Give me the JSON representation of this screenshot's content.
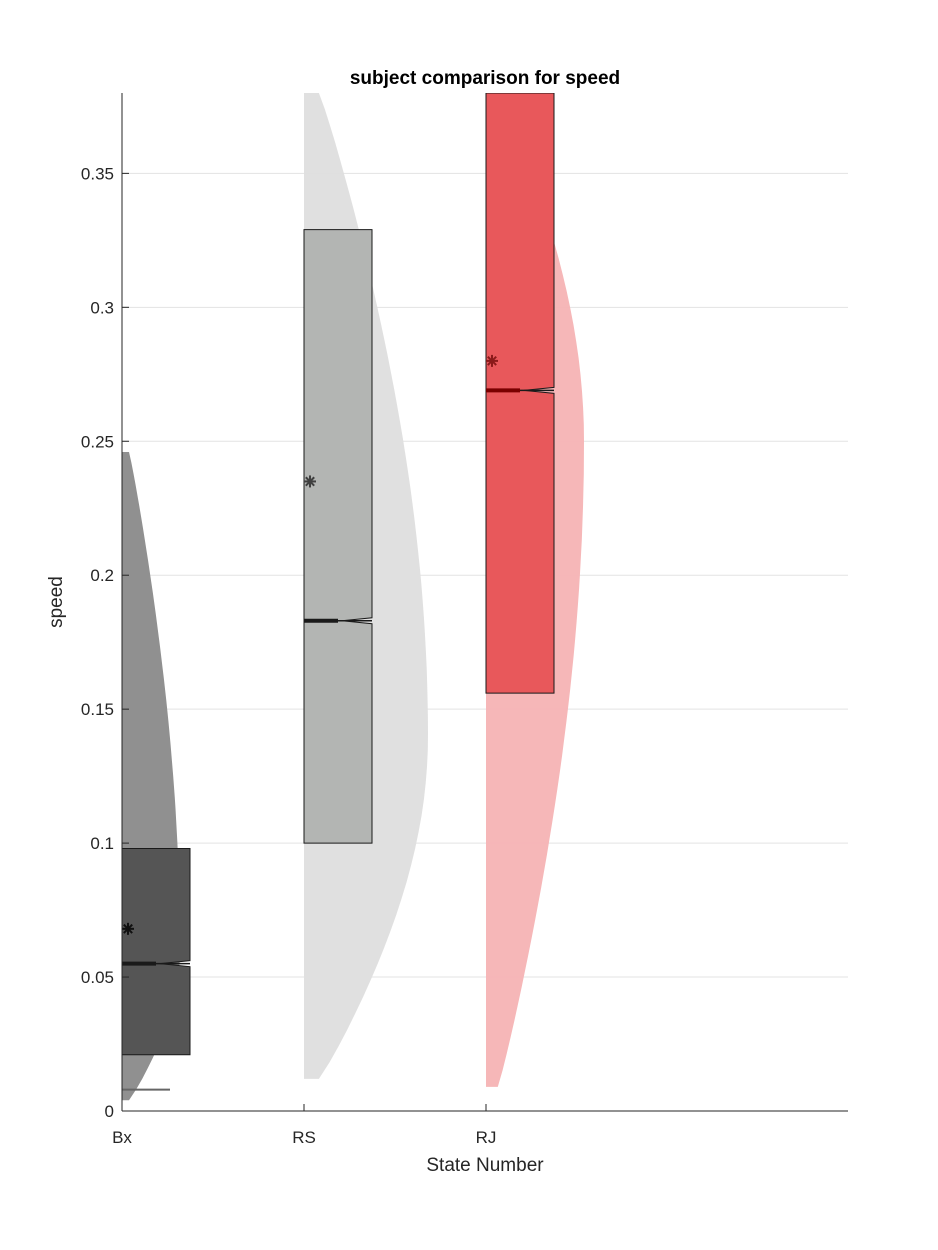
{
  "chart_data": {
    "type": "raincloud",
    "title": "subject comparison for speed",
    "xlabel": "State Number",
    "ylabel": "speed",
    "ylim": [
      0,
      0.38
    ],
    "yticks": [
      0,
      0.05,
      0.1,
      0.15,
      0.2,
      0.25,
      0.3,
      0.35
    ],
    "ytick_labels": [
      "0",
      "0.05",
      "0.1",
      "0.15",
      "0.2",
      "0.25",
      "0.3",
      "0.35"
    ],
    "grid": true,
    "categories": [
      "Bx",
      "RS",
      "RJ"
    ],
    "series": [
      {
        "category": "Bx",
        "color": "#555555",
        "cloud_color": "#8a8a8a",
        "box": {
          "q1": 0.021,
          "median": 0.055,
          "q3": 0.098
        },
        "mean": 0.068,
        "marker": 0.008,
        "density_range": [
          0.004,
          0.246
        ],
        "density_peak_at": 0.06
      },
      {
        "category": "RS",
        "color": "#b3b5b3",
        "cloud_color": "#dedede",
        "box": {
          "q1": 0.1,
          "median": 0.183,
          "q3": 0.329
        },
        "mean": 0.235,
        "density_range": [
          0.012,
          0.38
        ],
        "density_peak_at": 0.14
      },
      {
        "category": "RJ",
        "color": "#e8585b",
        "cloud_color": "#f5b3b4",
        "box": {
          "q1": 0.156,
          "median": 0.269,
          "q3": 0.38
        },
        "mean": 0.28,
        "density_range": [
          0.009,
          0.38
        ],
        "density_peak_at": 0.25
      }
    ]
  }
}
